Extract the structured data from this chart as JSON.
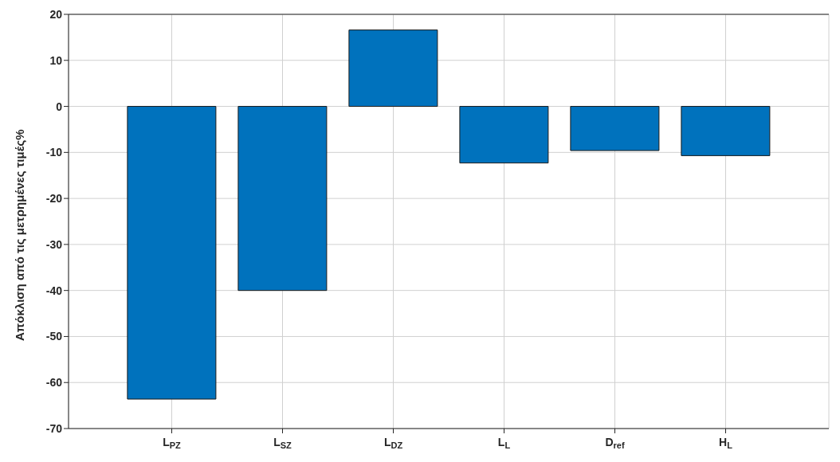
{
  "chart_data": {
    "type": "bar",
    "ylabel": "Απόκλιση από τις μετρημένες τιμές%",
    "categories": [
      "L$_{PZ}$",
      "L$_{SZ}$",
      "L$_{DZ}$",
      "L$_{L}$",
      "D$_{ref}$",
      "H$_{L}$"
    ],
    "values": [
      -63.6,
      -40,
      16.6,
      -12.3,
      -9.6,
      -10.7
    ],
    "color": "#0072bd",
    "ylim": [
      -70,
      20
    ],
    "yticks": [
      -70,
      -60,
      -50,
      -40,
      -30,
      -20,
      -10,
      0,
      10,
      20
    ],
    "grid": true
  }
}
